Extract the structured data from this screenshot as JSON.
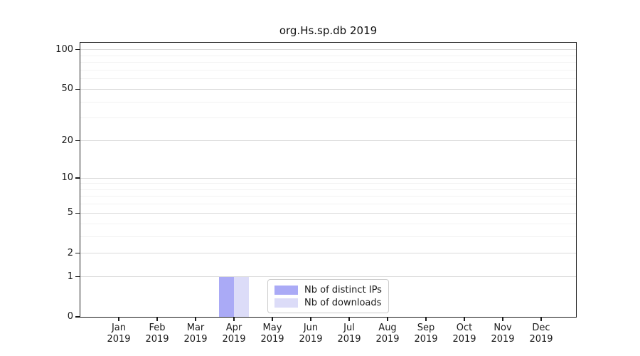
{
  "chart_data": {
    "type": "bar",
    "title": "org.Hs.sp.db 2019",
    "categories": [
      "Jan 2019",
      "Feb 2019",
      "Mar 2019",
      "Apr 2019",
      "May 2019",
      "Jun 2019",
      "Jul 2019",
      "Aug 2019",
      "Sep 2019",
      "Oct 2019",
      "Nov 2019",
      "Dec 2019"
    ],
    "series": [
      {
        "name": "Nb of distinct IPs",
        "color": "#aaaaf6",
        "values": [
          0,
          0,
          0,
          1,
          0,
          0,
          0,
          0,
          0,
          0,
          0,
          0
        ]
      },
      {
        "name": "Nb of downloads",
        "color": "#dcdcf8",
        "values": [
          0,
          0,
          0,
          1,
          0,
          0,
          0,
          0,
          0,
          0,
          0,
          0
        ]
      }
    ],
    "xlabel": "",
    "ylabel": "",
    "yscale": "log1p",
    "ylim": [
      0,
      113
    ],
    "y_major_ticks": [
      0,
      1,
      2,
      5,
      10,
      20,
      50,
      100
    ],
    "y_minor_gridlines": [
      3,
      4,
      6,
      7,
      8,
      9,
      30,
      40,
      60,
      70,
      80,
      90
    ],
    "grid": "horizontal",
    "legend_position": "inside-bottom-center",
    "colors": {
      "axis": "#1a1a1a",
      "grid_major": "#dbdbdb",
      "grid_minor": "#f2f2f2",
      "legend_border": "#cccccc",
      "background": "#ffffff"
    }
  }
}
